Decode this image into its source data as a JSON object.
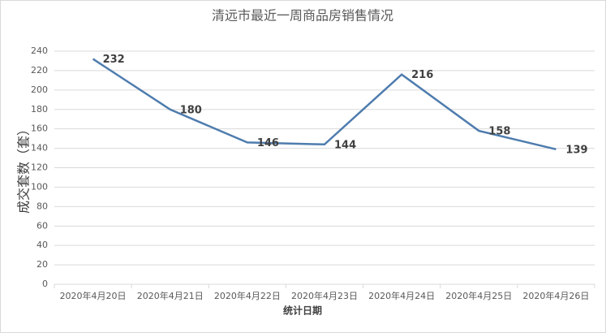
{
  "chart_data": {
    "type": "line",
    "title": "清远市最近一周商品房销售情况",
    "x_label": "统计日期",
    "y_label": "成交套数（套）",
    "categories": [
      "2020年4月20日",
      "2020年4月21日",
      "2020年4月22日",
      "2020年4月23日",
      "2020年4月24日",
      "2020年4月25日",
      "2020年4月26日"
    ],
    "values": [
      232,
      180,
      146,
      144,
      216,
      158,
      139
    ],
    "color": "#4e7cae",
    "ylim": [
      0,
      240
    ],
    "yticks": [
      0,
      20,
      40,
      60,
      80,
      100,
      120,
      140,
      160,
      180,
      200,
      220,
      240
    ],
    "grid": true
  }
}
